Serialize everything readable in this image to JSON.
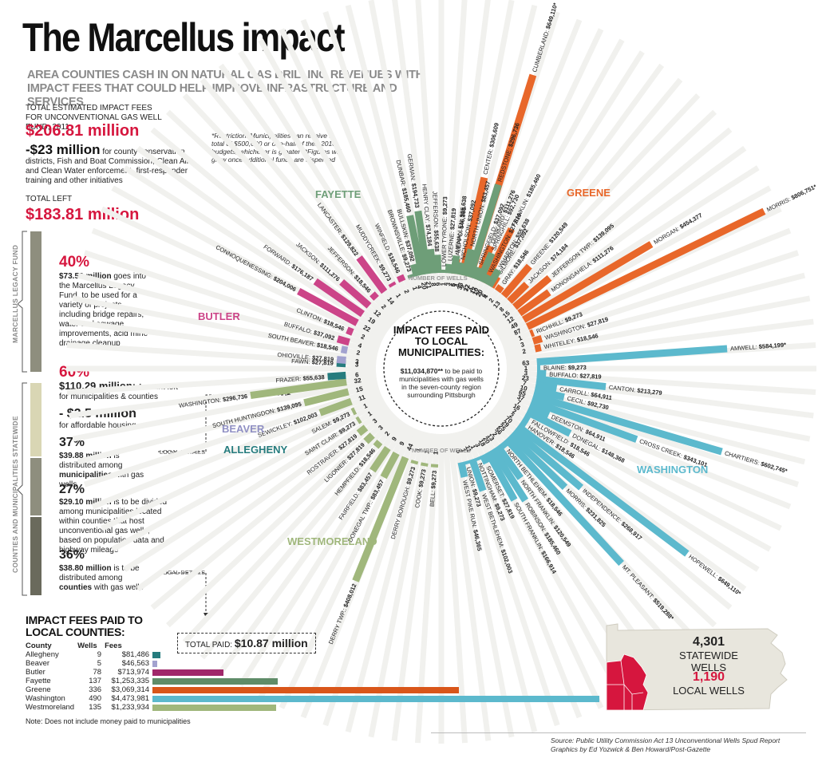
{
  "title": "The Marcellus impact",
  "subtitle": "AREA COUNTIES CASH IN ON NATURAL GAS DRILLING REVENUES WITH IMPACT FEES THAT COULD HELP IMPROVE INFRASTRUCTURE AND SERVICES",
  "left": {
    "total_label": "TOTAL ESTIMATED IMPACT FEES FOR UNCONVENTIONAL GAS WELL FUND, 2011",
    "total_value": "$206.81 million",
    "minus_value": "-$23 million",
    "minus_text": "for county conservation districts, Fish and Boat Commission, Clean Air and Clean Water enforcement, first-responder training and other initiatives",
    "left_label": "TOTAL LEFT",
    "left_value": "$183.81 million",
    "p40": "40%",
    "p40_bold": "$73.52 million",
    "p40_text": "goes into the Marcellus Legacy Fund, to be used for a variety of projects, including bridge repairs, water and sewage improvements, acid mine drainage cleanup",
    "p60": "60%",
    "p60_bold": "$110.29 million:",
    "p60_text": "Amount left for municipalities & counties",
    "housing_bold": "- $2.5 million",
    "housing_text": "for affordable housing",
    "p37": "37%",
    "p37_bold": "$39.88 million",
    "p37_text": "is distributed among",
    "p37_bold2": "municipalities",
    "p37_text2": "with gas wells",
    "p27": "27%",
    "p27_bold": "$29.10 million",
    "p27_text": "is to be divided among municipalities located within counties that host unconventional gas wells, based on population data and highway mileage",
    "p36": "36%",
    "p36_bold": "$38.80 million",
    "p36_text": "is to be distributed among",
    "p36_bold2": "counties",
    "p36_text2": "with gas wells",
    "vlabel1": "MARCELLUS LEGACY FUND",
    "vlabel2": "COUNTIES AND MUNICIPALITIES STATEWIDE",
    "local_details": "LOCAL DETAILS"
  },
  "restriction": "*Restriction: Municipalities can receive a total of $500,000 or one-half of their 2010 budgets, whichever is greater **Figures will grow once additional funds are dispersed",
  "center": {
    "heading": "IMPACT FEES PAID TO LOCAL MUNICIPALITIES:",
    "amount": "$11,034,870**",
    "text": "to be paid to municipalities with gas wells in the seven-county region surrounding Pittsburgh",
    "wells_label": "NUMBER OF WELLS"
  },
  "county_labels": {
    "fayette": "FAYETTE",
    "greene": "GREENE",
    "butler": "BUTLER",
    "beaver": "BEAVER",
    "allegheny": "ALLEGHENY",
    "washington": "WASHINGTON",
    "westmoreland": "WESTMORELAND"
  },
  "colors": {
    "fayette": "#6e9e78",
    "greene": "#e8672a",
    "butler": "#cc4488",
    "beaver": "#a2a2cf",
    "allegheny": "#267c7e",
    "washington": "#5cb9cd",
    "westmoreland": "#a0b77c",
    "red": "#d6163e"
  },
  "chart_data": {
    "type": "bar",
    "title": "IMPACT FEES PAID TO LOCAL MUNICIPALITIES:",
    "series": [
      {
        "county": "Greene",
        "items": [
          {
            "name": "ALEPPO",
            "fee": "$46,365",
            "value": 46365,
            "wells": "5"
          },
          {
            "name": "CENTER",
            "fee": "$306,609",
            "value": 306609,
            "wells": "33"
          },
          {
            "name": "CUMBERLAND",
            "fee": "$649,110*",
            "value": 649110,
            "wells": "72"
          },
          {
            "name": "DUNKARD",
            "fee": "$111,276",
            "value": 111276,
            "wells": "12"
          },
          {
            "name": "FRANKLIN",
            "fee": "$185,460",
            "value": 185460,
            "wells": "20"
          },
          {
            "name": "GILMORE",
            "fee": "$37,092",
            "value": 37092,
            "wells": "4"
          },
          {
            "name": "GRAY",
            "fee": "$18,546",
            "value": 18546,
            "wells": "2"
          },
          {
            "name": "GREENE",
            "fee": "$120,549",
            "value": 120549,
            "wells": "13"
          },
          {
            "name": "JACKSON",
            "fee": "$74,184",
            "value": 74184,
            "wells": "8"
          },
          {
            "name": "JEFFERSON TWP.",
            "fee": "$139,095",
            "value": 139095,
            "wells": "15"
          },
          {
            "name": "MONONGAHELA",
            "fee": "$111,276",
            "value": 111276,
            "wells": "12"
          },
          {
            "name": "MORGAN",
            "fee": "$454,377",
            "value": 454377,
            "wells": "49"
          },
          {
            "name": "MORRIS",
            "fee": "$806,751*",
            "value": 806751,
            "wells": "87"
          },
          {
            "name": "RICHHILL",
            "fee": "$9,273",
            "value": 9273,
            "wells": "1"
          },
          {
            "name": "WASHINGTON",
            "fee": "$27,819",
            "value": 27819,
            "wells": "3"
          },
          {
            "name": "WHITELEY",
            "fee": "$18,546",
            "value": 18546,
            "wells": "2"
          }
        ]
      },
      {
        "county": "Washington",
        "items": [
          {
            "name": "AMWELL",
            "fee": "$584,199*",
            "value": 584199,
            "wells": "63"
          },
          {
            "name": "BLAINE",
            "fee": "$9,273",
            "value": 9273,
            "wells": "1"
          },
          {
            "name": "BUFFALO",
            "fee": "$27,819",
            "value": 27819,
            "wells": "3"
          },
          {
            "name": "CANTON",
            "fee": "$213,279",
            "value": 213279,
            "wells": "23"
          },
          {
            "name": "CARROLL",
            "fee": "$64,911",
            "value": 64911,
            "wells": "7"
          },
          {
            "name": "CECIL",
            "fee": "$92,730",
            "value": 92730,
            "wells": "10"
          },
          {
            "name": "CHARTIERS",
            "fee": "$602,745*",
            "value": 602745,
            "wells": "65"
          },
          {
            "name": "CROSS CREEK",
            "fee": "$343,101",
            "value": 343101,
            "wells": "37"
          },
          {
            "name": "DEEMSTON",
            "fee": "$64,911",
            "value": 64911,
            "wells": "7"
          },
          {
            "name": "DONEGAL",
            "fee": "$148,368",
            "value": 148368,
            "wells": "16"
          },
          {
            "name": "FALLOWFIELD",
            "fee": "$18,546",
            "value": 18546,
            "wells": "2"
          },
          {
            "name": "HANOVER",
            "fee": "$18,546",
            "value": 18546,
            "wells": "2"
          },
          {
            "name": "HOPEWELL",
            "fee": "$649,110*",
            "value": 649110,
            "wells": "70"
          },
          {
            "name": "INDEPENDENCE",
            "fee": "$268,917",
            "value": 268917,
            "wells": "29"
          },
          {
            "name": "MORRIS",
            "fee": "$231,825",
            "value": 231825,
            "wells": "25"
          },
          {
            "name": "MT. PLEASANT",
            "fee": "$519,288*",
            "value": 519288,
            "wells": "56"
          },
          {
            "name": "NORTH BETHLEHEM",
            "fee": "$18,546",
            "value": 18546,
            "wells": "2"
          },
          {
            "name": "NORTH FRANKLIN",
            "fee": "$120,549",
            "value": 120549,
            "wells": "13"
          },
          {
            "name": "ROBINSON",
            "fee": "$185,460",
            "value": 185460,
            "wells": "20"
          },
          {
            "name": "SOUTH FRANKLIN",
            "fee": "$166,914",
            "value": 166914,
            "wells": "18"
          },
          {
            "name": "SOMERSET",
            "fee": "$27,819",
            "value": 27819,
            "wells": "3"
          },
          {
            "name": "NOTTINGHAM",
            "fee": "$9,273",
            "value": 9273,
            "wells": "1"
          },
          {
            "name": "WEST BETHLEHEM",
            "fee": "$102,003",
            "value": 102003,
            "wells": "11"
          },
          {
            "name": "UNION",
            "fee": "$9,273",
            "value": 9273,
            "wells": "1"
          },
          {
            "name": "WEST PIKE RUN",
            "fee": "$46,365",
            "value": 46365,
            "wells": "5"
          }
        ]
      },
      {
        "county": "Westmoreland",
        "items": [
          {
            "name": "BELL",
            "fee": "$9,273",
            "value": 9273,
            "wells": "1"
          },
          {
            "name": "COOK",
            "fee": "$9,273",
            "value": 9273,
            "wells": "1"
          },
          {
            "name": "DERRY BOROUGH",
            "fee": "$9,273",
            "value": 9273,
            "wells": "1"
          },
          {
            "name": "DERRY TWP.",
            "fee": "$408,012",
            "value": 408012,
            "wells": "44"
          },
          {
            "name": "DONEGAL TWP.",
            "fee": "$83,457",
            "value": 83457,
            "wells": "9"
          },
          {
            "name": "FAIRFIELD",
            "fee": "$83,457",
            "value": 83457,
            "wells": "9"
          },
          {
            "name": "HEMPFIELD",
            "fee": "$18,546",
            "value": 18546,
            "wells": "2"
          },
          {
            "name": "LIGONIER",
            "fee": "$27,819",
            "value": 27819,
            "wells": "3"
          },
          {
            "name": "ROSTRAVER",
            "fee": "$27,819",
            "value": 27819,
            "wells": "3"
          },
          {
            "name": "SAINT CLAIR",
            "fee": "$9,273",
            "value": 9273,
            "wells": "1"
          },
          {
            "name": "SALEM",
            "fee": "$9,273",
            "value": 9273,
            "wells": "1"
          },
          {
            "name": "SEWICKLEY",
            "fee": "$102,003",
            "value": 102003,
            "wells": "11"
          },
          {
            "name": "SOUTH HUNTINGDON",
            "fee": "$139,095",
            "value": 139095,
            "wells": "15"
          },
          {
            "name": "WASHINGTON",
            "fee": "$296,736",
            "value": 296736,
            "wells": "32"
          }
        ]
      },
      {
        "county": "Allegheny",
        "items": [
          {
            "name": "FRAZER",
            "fee": "$55,638",
            "value": 55638,
            "wells": "6"
          },
          {
            "name": "FAWN",
            "fee": "$27,819",
            "value": 27819,
            "wells": "3"
          }
        ]
      },
      {
        "county": "Beaver",
        "items": [
          {
            "name": "OHIOVILLE",
            "fee": "$27,819",
            "value": 27819,
            "wells": "3"
          },
          {
            "name": "SOUTH BEAVER",
            "fee": "$18,546",
            "value": 18546,
            "wells": "2"
          }
        ]
      },
      {
        "county": "Butler",
        "items": [
          {
            "name": "BUFFALO",
            "fee": "$37,092",
            "value": 37092,
            "wells": "4"
          },
          {
            "name": "CLINTON",
            "fee": "$18,546",
            "value": 18546,
            "wells": "2"
          },
          {
            "name": "CONNOQUENESSING",
            "fee": "$204,006",
            "value": 204006,
            "wells": "22"
          },
          {
            "name": "FORWARD",
            "fee": "$176,187",
            "value": 176187,
            "wells": "19"
          },
          {
            "name": "JACKSON",
            "fee": "$111,276",
            "value": 111276,
            "wells": "12"
          },
          {
            "name": "JEFFERSON",
            "fee": "$18,546",
            "value": 18546,
            "wells": "2"
          },
          {
            "name": "LANCASTER",
            "fee": "$129,822",
            "value": 129822,
            "wells": "14"
          },
          {
            "name": "MUDDYCREEK",
            "fee": "$9,273",
            "value": 9273,
            "wells": "1"
          },
          {
            "name": "WINFIELD",
            "fee": "$18,546",
            "value": 18546,
            "wells": "2"
          }
        ]
      },
      {
        "county": "Fayette",
        "items": [
          {
            "name": "BROWNSVILLE",
            "fee": "$9,273",
            "value": 9273,
            "wells": "1"
          },
          {
            "name": "BULLSKIN",
            "fee": "$37,092",
            "value": 37092,
            "wells": "4"
          },
          {
            "name": "DUNBAR",
            "fee": "$185,460",
            "value": 185460,
            "wells": "20"
          },
          {
            "name": "GERMAN",
            "fee": "$194,733",
            "value": 194733,
            "wells": "21"
          },
          {
            "name": "HENRY CLAY",
            "fee": "$74,184",
            "value": 74184,
            "wells": "8"
          },
          {
            "name": "JEFFERSON",
            "fee": "$55,638",
            "value": 55638,
            "wells": "6"
          },
          {
            "name": "LOWER TYRONE",
            "fee": "$9,273",
            "value": 9273,
            "wells": "1"
          },
          {
            "name": "LUZERNE",
            "fee": "$27,819",
            "value": 27819,
            "wells": "3"
          },
          {
            "name": "MENALLEN",
            "fee": "$55,638",
            "value": 55638,
            "wells": "6"
          },
          {
            "name": "NICHOLSON",
            "fee": "$37,092",
            "value": 37092,
            "wells": "4"
          },
          {
            "name": "NORTH UNION",
            "fee": "$83,457",
            "value": 83457,
            "wells": "9"
          },
          {
            "name": "REDSTONE",
            "fee": "$296,736",
            "value": 296736,
            "wells": "32"
          },
          {
            "name": "SPRINGFIELD",
            "fee": "$37,092",
            "value": 37092,
            "wells": "4"
          },
          {
            "name": "SPRINGHILL",
            "fee": "$92,730",
            "value": 92730,
            "wells": "10"
          },
          {
            "name": "WASHINGTON",
            "fee": "$27,819",
            "value": 27819,
            "wells": "3"
          },
          {
            "name": "WHARTON",
            "fee": "$55,638",
            "value": 55638,
            "wells": "6"
          }
        ]
      }
    ]
  },
  "counties_table": {
    "heading": "IMPACT FEES PAID TO LOCAL COUNTIES:",
    "columns": [
      "County",
      "Wells",
      "Fees"
    ],
    "rows": [
      {
        "county": "Allegheny",
        "wells": "9",
        "fees": "$81,486",
        "value": 81486,
        "color": "#267c7e"
      },
      {
        "county": "Beaver",
        "wells": "5",
        "fees": "$46,563",
        "value": 46563,
        "color": "#a2a2cf"
      },
      {
        "county": "Butler",
        "wells": "78",
        "fees": "$713,974",
        "value": 713974,
        "color": "#a0286a"
      },
      {
        "county": "Fayette",
        "wells": "137",
        "fees": "$1,253,335",
        "value": 1253335,
        "color": "#5f8c68"
      },
      {
        "county": "Greene",
        "wells": "336",
        "fees": "$3,069,314",
        "value": 3069314,
        "color": "#d9561a"
      },
      {
        "county": "Washington",
        "wells": "490",
        "fees": "$4,473,981",
        "value": 4473981,
        "color": "#5cb9cd"
      },
      {
        "county": "Westmoreland",
        "wells": "135",
        "fees": "$1,233,934",
        "value": 1233934,
        "color": "#a0b77c"
      }
    ],
    "total_label": "TOTAL PAID:",
    "total_value": "$10.87 million",
    "note": "Note: Does not include money paid to municipalities"
  },
  "map": {
    "statewide_num": "4,301",
    "statewide_label": "STATEWIDE WELLS",
    "local_num": "1,190",
    "local_label": "LOCAL WELLS"
  },
  "source": "Source: Public Utility Commission Act 13 Unconventional Wells Spud Report",
  "credit": "Graphics by Ed Yozwick & Ben Howard/Post-Gazette"
}
